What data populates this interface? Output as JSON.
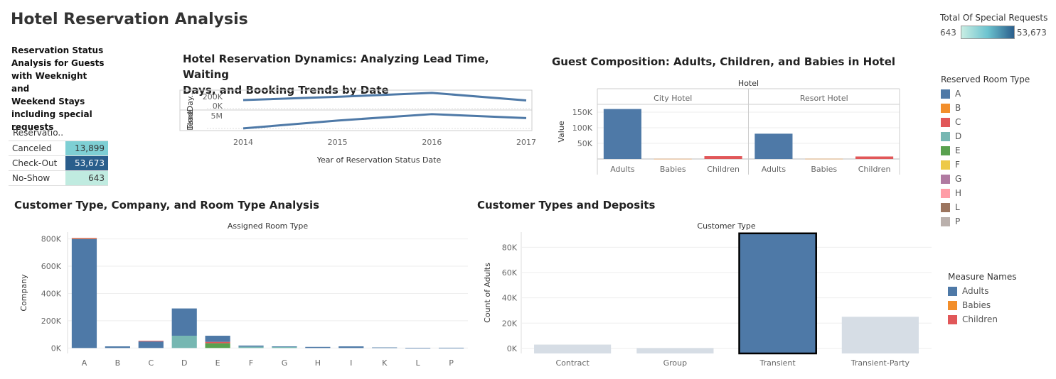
{
  "dashboard": {
    "title": "Hotel Reservation Analysis"
  },
  "special_requests_legend": {
    "title": "Total Of Special Requests",
    "min": "643",
    "max": "53,673"
  },
  "status_panel": {
    "title_lines": [
      "Reservation Status",
      "Analysis for Guests",
      "with Weeknight and",
      "Weekend Stays",
      "including special",
      "requests"
    ],
    "header": "Reservatio..",
    "rows": [
      {
        "label": "Canceled",
        "value": "13,899",
        "color": "#7ecfd4"
      },
      {
        "label": "Check-Out",
        "value": "53,673",
        "color": "#2a5e8c"
      },
      {
        "label": "No-Show",
        "value": "643",
        "color": "#c0ebe0"
      }
    ]
  },
  "room_type_legend": {
    "title": "Reserved Room Type",
    "items": [
      {
        "label": "A",
        "color": "#4e79a7"
      },
      {
        "label": "B",
        "color": "#f28e2b"
      },
      {
        "label": "C",
        "color": "#e15759"
      },
      {
        "label": "D",
        "color": "#76b7b2"
      },
      {
        "label": "E",
        "color": "#59a14f"
      },
      {
        "label": "F",
        "color": "#edc948"
      },
      {
        "label": "G",
        "color": "#b07aa1"
      },
      {
        "label": "H",
        "color": "#ff9da7"
      },
      {
        "label": "L",
        "color": "#9c755f"
      },
      {
        "label": "P",
        "color": "#bab0ac"
      }
    ]
  },
  "measure_legend": {
    "title": "Measure Names",
    "items": [
      {
        "label": "Adults",
        "color": "#4e79a7"
      },
      {
        "label": "Babies",
        "color": "#f28e2b"
      },
      {
        "label": "Children",
        "color": "#e15759"
      }
    ]
  },
  "chart_data": [
    {
      "id": "dynamics",
      "type": "line",
      "title_lines": [
        "Hotel Reservation Dynamics: Analyzing Lead Time, Waiting",
        "Days, and Booking Trends by Date"
      ],
      "xlabel": "Year of Reservation Status Date",
      "x": [
        "2014",
        "2015",
        "2016",
        "2017"
      ],
      "series": [
        {
          "name": "LeadDay..",
          "tick_labels": [
            "200K",
            "0K"
          ],
          "values": [
            130,
            180,
            240,
            125
          ],
          "ylim": [
            0,
            260
          ]
        },
        {
          "name": "Time",
          "tick_labels": [
            "5M"
          ],
          "values": [
            0.6,
            3.8,
            6.4,
            4.8
          ],
          "ylim": [
            0,
            7.5
          ]
        }
      ],
      "color": "#4e79a7"
    },
    {
      "id": "guest",
      "type": "bar",
      "title": "Guest Composition: Adults, Children, and Babies in Hotel",
      "column_header": "Hotel",
      "ylabel": "Value",
      "y_ticks": [
        50000,
        100000,
        150000
      ],
      "y_tick_labels": [
        "50K",
        "100K",
        "150K"
      ],
      "ylim": [
        0,
        175000
      ],
      "panels": [
        {
          "name": "City Hotel",
          "categories": [
            "Adults",
            "Babies",
            "Children"
          ],
          "values": [
            160000,
            400,
            9000
          ]
        },
        {
          "name": "Resort Hotel",
          "categories": [
            "Adults",
            "Babies",
            "Children"
          ],
          "values": [
            81000,
            500,
            8000
          ]
        }
      ],
      "colors": {
        "Adults": "#4e79a7",
        "Babies": "#f28e2b",
        "Children": "#e15759"
      }
    },
    {
      "id": "company",
      "type": "bar",
      "stacked": true,
      "title": "Customer Type, Company, and Room Type Analysis",
      "column_header": "Assigned Room Type",
      "ylabel": "Company",
      "y_ticks": [
        0,
        200000,
        400000,
        600000,
        800000
      ],
      "y_tick_labels": [
        "0K",
        "200K",
        "400K",
        "600K",
        "800K"
      ],
      "ylim": [
        -40000,
        850000
      ],
      "categories": [
        "A",
        "B",
        "C",
        "D",
        "E",
        "F",
        "G",
        "H",
        "I",
        "K",
        "L",
        "P"
      ],
      "stacks": [
        [
          {
            "type": "A",
            "value": 800000
          },
          {
            "type": "B",
            "value": 4000
          },
          {
            "type": "C",
            "value": 3000
          }
        ],
        [
          {
            "type": "A",
            "value": 12000
          }
        ],
        [
          {
            "type": "A",
            "value": 48000
          },
          {
            "type": "C",
            "value": 5000
          }
        ],
        [
          {
            "type": "D",
            "value": 90000
          },
          {
            "type": "A",
            "value": 200000
          }
        ],
        [
          {
            "type": "E",
            "value": 35000
          },
          {
            "type": "C",
            "value": 10000
          },
          {
            "type": "A",
            "value": 45000
          }
        ],
        [
          {
            "type": "D",
            "value": 10000
          },
          {
            "type": "A",
            "value": 8000
          }
        ],
        [
          {
            "type": "D",
            "value": 10000
          },
          {
            "type": "A",
            "value": 2000
          }
        ],
        [
          {
            "type": "A",
            "value": 8000
          }
        ],
        [
          {
            "type": "A",
            "value": 12000
          }
        ],
        [
          {
            "type": "A",
            "value": 4000
          }
        ],
        [
          {
            "type": "A",
            "value": 500
          }
        ],
        [
          {
            "type": "A",
            "value": 2000
          }
        ]
      ]
    },
    {
      "id": "deposits",
      "type": "bar",
      "title": "Customer Types and Deposits",
      "column_header": "Customer Type",
      "ylabel": "Count of Adults",
      "y_ticks": [
        0,
        20000,
        40000,
        60000,
        80000
      ],
      "y_tick_labels": [
        "0K",
        "20K",
        "40K",
        "60K",
        "80K"
      ],
      "ylim": [
        -4000,
        92000
      ],
      "categories": [
        "Contract",
        "Group",
        "Transient",
        "Transient-Party"
      ],
      "values": [
        3000,
        300,
        91000,
        25000
      ],
      "highlighted": "Transient",
      "highlight_color": "#4e79a7",
      "base_color": "#d6dde5"
    }
  ]
}
